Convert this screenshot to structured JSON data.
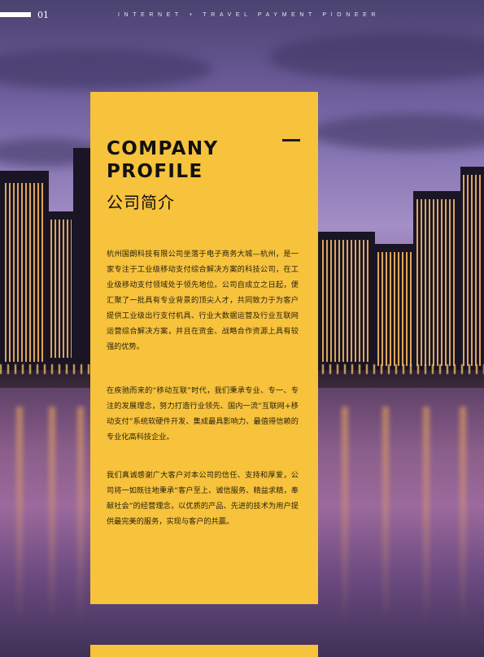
{
  "header": {
    "page_number": "01",
    "tagline": "INTERNET + TRAVEL PAYMENT PIONEER"
  },
  "profile": {
    "title_line1": "COMPANY",
    "title_line2": "PROFILE",
    "subtitle": "公司简介",
    "paragraphs": [
      "杭州国朗科技有限公司坐落于电子商务大城—杭州，是一家专注于工业级移动支付综合解决方案的科技公司，在工业级移动支付领域处于领先地位。公司自成立之日起，便汇聚了一批具有专业背景的顶尖人才，共同致力于为客户提供工业级出行支付机具、行业大数据运营及行业互联网运营综合解决方案，并且在资金、战略合作资源上具有较强的优势。",
      "在疾驰而来的“移动互联”时代，我们秉承专业、专一、专注的发展理念，努力打造行业领先、国内一流“互联网+移动支付”系统软硬件开发、集成最具影响力、最值得信赖的专业化高科技企业。",
      "我们真诚感谢广大客户对本公司的信任、支持和厚爱，公司将一如既往地秉承“客户至上、诚信服务、精益求精，奉献社会”的经营理念，以优质的产品、先进的技术为用户提供最完美的服务，实现与客户的共赢。"
    ]
  },
  "colors": {
    "accent_yellow": "#f7c23c",
    "text_dark": "#111111",
    "sky_purple": "#8a79b6"
  }
}
